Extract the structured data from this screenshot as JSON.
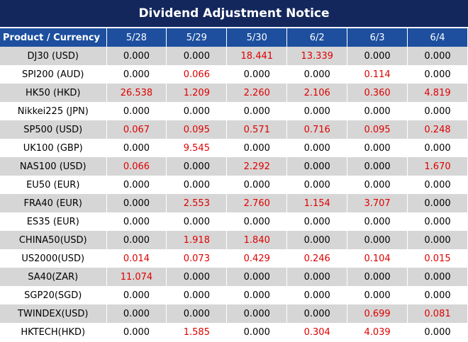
{
  "title": "Dividend Adjustment Notice",
  "table": {
    "header": [
      "Product / Currency",
      "5/28",
      "5/29",
      "5/30",
      "6/2",
      "6/3",
      "6/4"
    ],
    "rows": [
      [
        "DJ30 (USD)",
        "0.000",
        "0.000",
        "18.441",
        "13.339",
        "0.000",
        "0.000"
      ],
      [
        "SPI200 (AUD)",
        "0.000",
        "0.066",
        "0.000",
        "0.000",
        "0.114",
        "0.000"
      ],
      [
        "HK50 (HKD)",
        "26.538",
        "1.209",
        "2.260",
        "2.106",
        "0.360",
        "4.819"
      ],
      [
        "Nikkei225 (JPN)",
        "0.000",
        "0.000",
        "0.000",
        "0.000",
        "0.000",
        "0.000"
      ],
      [
        "SP500 (USD)",
        "0.067",
        "0.095",
        "0.571",
        "0.716",
        "0.095",
        "0.248"
      ],
      [
        "UK100 (GBP)",
        "0.000",
        "9.545",
        "0.000",
        "0.000",
        "0.000",
        "0.000"
      ],
      [
        "NAS100 (USD)",
        "0.066",
        "0.000",
        "2.292",
        "0.000",
        "0.000",
        "1.670"
      ],
      [
        "EU50 (EUR)",
        "0.000",
        "0.000",
        "0.000",
        "0.000",
        "0.000",
        "0.000"
      ],
      [
        "FRA40 (EUR)",
        "0.000",
        "2.553",
        "2.760",
        "1.154",
        "3.707",
        "0.000"
      ],
      [
        "ES35 (EUR)",
        "0.000",
        "0.000",
        "0.000",
        "0.000",
        "0.000",
        "0.000"
      ],
      [
        "CHINA50(USD)",
        "0.000",
        "1.918",
        "1.840",
        "0.000",
        "0.000",
        "0.000"
      ],
      [
        "US2000(USD)",
        "0.014",
        "0.073",
        "0.429",
        "0.246",
        "0.104",
        "0.015"
      ],
      [
        "SA40(ZAR)",
        "11.074",
        "0.000",
        "0.000",
        "0.000",
        "0.000",
        "0.000"
      ],
      [
        "SGP20(SGD)",
        "0.000",
        "0.000",
        "0.000",
        "0.000",
        "0.000",
        "0.000"
      ],
      [
        "TWINDEX(USD)",
        "0.000",
        "0.000",
        "0.000",
        "0.000",
        "0.699",
        "0.081"
      ],
      [
        "HKTECH(HKD)",
        "0.000",
        "1.585",
        "0.000",
        "0.304",
        "4.039",
        "0.000"
      ]
    ]
  }
}
